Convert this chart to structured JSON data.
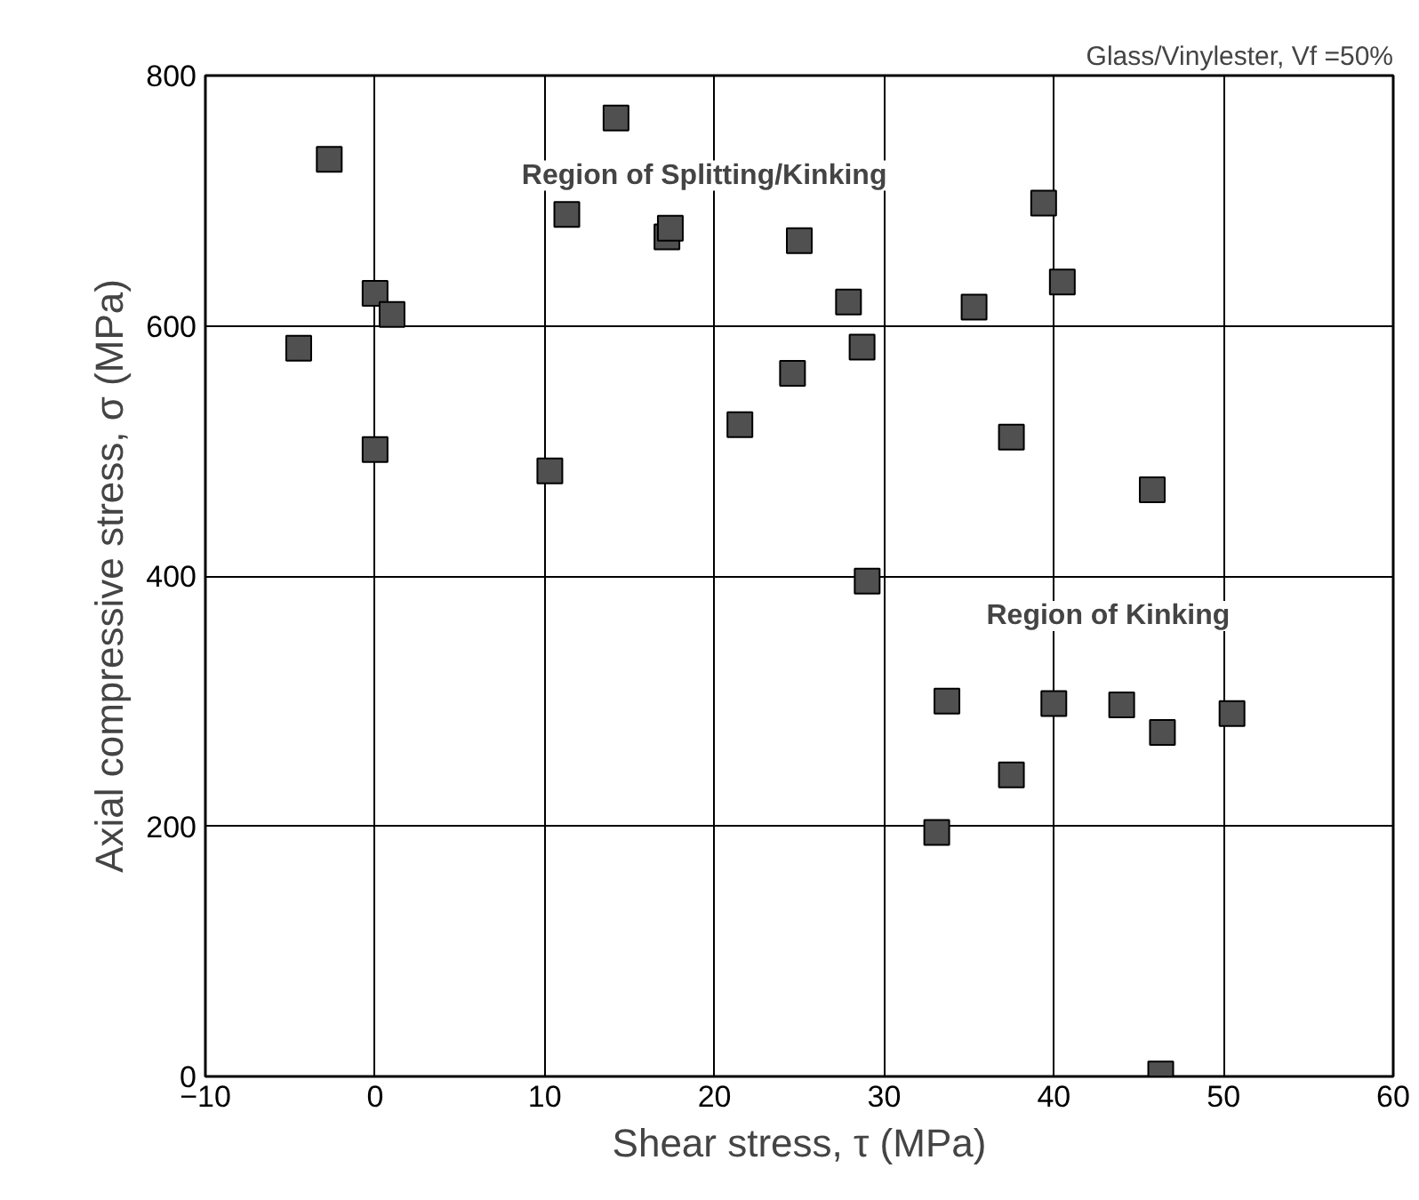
{
  "chart_data": {
    "type": "scatter",
    "xlabel": "Shear stress, τ (MPa)",
    "ylabel": "Axial compressive stress, σ (MPa)",
    "x": [
      -4.5,
      -2.7,
      0,
      1,
      0,
      10.3,
      11.3,
      14.2,
      17.2,
      17.4,
      21.5,
      24.6,
      25,
      27.9,
      28.7,
      29,
      35.3,
      37.5,
      39.4,
      40.5,
      45.8,
      33.7,
      33.1,
      37.5,
      40,
      44,
      46.4,
      50.5,
      46.3
    ],
    "series": [
      {
        "color": "#505050",
        "values": [
          582,
          733,
          626,
          609,
          501,
          484,
          689,
          766,
          671,
          678,
          521,
          562,
          668,
          619,
          583,
          396,
          615,
          511,
          698,
          635,
          469,
          300,
          195,
          241,
          298,
          297,
          275,
          290,
          2
        ]
      }
    ],
    "xlim": [
      -10,
      60
    ],
    "xticks": [
      -10,
      0,
      10,
      20,
      30,
      40,
      50,
      60
    ],
    "ylim": [
      0,
      800
    ],
    "yticks": [
      0,
      200,
      400,
      600,
      800
    ],
    "grid": true,
    "marker": "square",
    "annotations": [
      "Glass/Vinylester, Vf =50%",
      "Region of Splitting/Kinking",
      "Region of Kinking"
    ]
  }
}
